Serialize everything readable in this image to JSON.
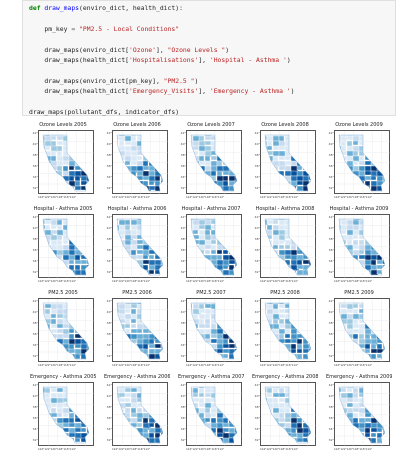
{
  "code": {
    "lines": [
      [
        {
          "t": "def ",
          "c": "kw"
        },
        {
          "t": "draw_maps",
          "c": "fn"
        },
        {
          "t": "(enviro_dict, health_dict):",
          "c": ""
        }
      ],
      [
        {
          "t": "",
          "c": ""
        }
      ],
      [
        {
          "t": "    pm_key ",
          "c": ""
        },
        {
          "t": "=",
          "c": "op"
        },
        {
          "t": " ",
          "c": ""
        },
        {
          "t": "\"PM2.5 - Local Conditions\"",
          "c": "str"
        }
      ],
      [
        {
          "t": "",
          "c": ""
        }
      ],
      [
        {
          "t": "    draw_maps(enviro_dict[",
          "c": ""
        },
        {
          "t": "'Ozone'",
          "c": "str"
        },
        {
          "t": "], ",
          "c": ""
        },
        {
          "t": "\"Ozone Levels \"",
          "c": "str"
        },
        {
          "t": ")",
          "c": ""
        }
      ],
      [
        {
          "t": "    draw_maps(health_dict[",
          "c": ""
        },
        {
          "t": "'Hospitalisations'",
          "c": "str"
        },
        {
          "t": "], ",
          "c": ""
        },
        {
          "t": "'Hospital - Asthma '",
          "c": "str"
        },
        {
          "t": ")",
          "c": ""
        }
      ],
      [
        {
          "t": "",
          "c": ""
        }
      ],
      [
        {
          "t": "    draw_maps(enviro_dict[pm_key], ",
          "c": ""
        },
        {
          "t": "\"PM2.5 \"",
          "c": "str"
        },
        {
          "t": ")",
          "c": ""
        }
      ],
      [
        {
          "t": "    draw_maps(health_dict[",
          "c": ""
        },
        {
          "t": "'Emergency_Visits'",
          "c": "str"
        },
        {
          "t": "], ",
          "c": ""
        },
        {
          "t": "'Emergency - Asthma '",
          "c": "str"
        },
        {
          "t": ")",
          "c": ""
        }
      ],
      [
        {
          "t": "",
          "c": ""
        }
      ],
      [
        {
          "t": "draw_maps(pollutant_dfs, indicator_dfs)",
          "c": ""
        }
      ]
    ]
  },
  "figures": [
    {
      "name": "ozone",
      "titles": [
        "Ozone Levels 2005",
        "Ozone Levels 2006",
        "Ozone Levels 2007",
        "Ozone Levels 2008",
        "Ozone Levels 2009"
      ]
    },
    {
      "name": "hospital",
      "titles": [
        "Hospital - Asthma 2005",
        "Hospital - Asthma 2006",
        "Hospital - Asthma 2007",
        "Hospital - Asthma 2008",
        "Hospital - Asthma 2009"
      ]
    },
    {
      "name": "pm25",
      "titles": [
        "PM2.5 2005",
        "PM2.5 2006",
        "PM2.5 2007",
        "PM2.5 2008",
        "PM2.5 2009"
      ]
    },
    {
      "name": "emergency",
      "titles": [
        "Emergency - Asthma 2005",
        "Emergency - Asthma 2006",
        "Emergency - Asthma 2007",
        "Emergency - Asthma 2008",
        "Emergency - Asthma 2009"
      ]
    }
  ],
  "y_ticks": [
    "42°",
    "40°",
    "38°",
    "36°",
    "34°",
    "32°"
  ],
  "x_ticks": "124°122°120°118°116°114°",
  "colors": {
    "light": "#dbe9f6",
    "mid": "#6baed6",
    "dark": "#08519c",
    "darkest": "#08306b"
  }
}
